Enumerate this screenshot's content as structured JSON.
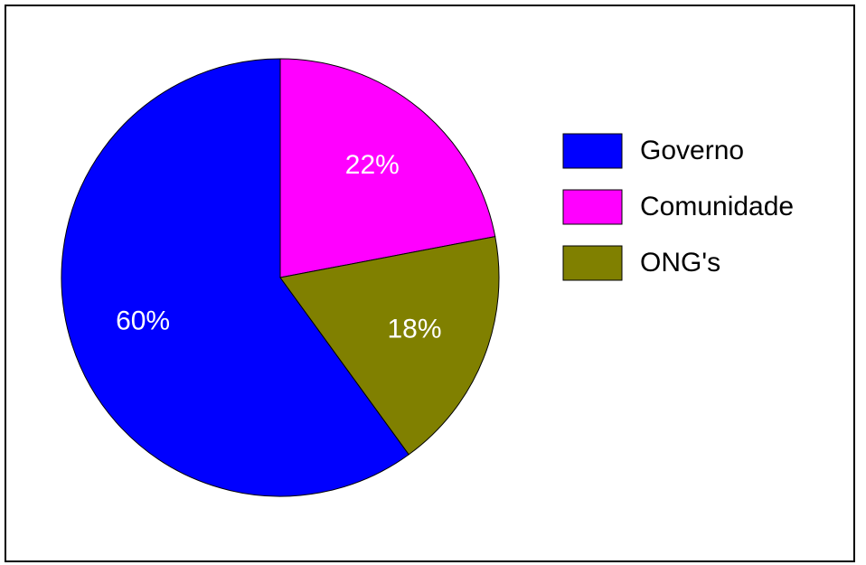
{
  "chart_data": {
    "type": "pie",
    "categories": [
      "Governo",
      "Comunidade",
      "ONG's"
    ],
    "values": [
      60,
      22,
      18
    ],
    "value_labels": [
      "60%",
      "22%",
      "18%"
    ],
    "colors": [
      "#0000ff",
      "#ff00ff",
      "#808000"
    ],
    "legend": "right"
  }
}
